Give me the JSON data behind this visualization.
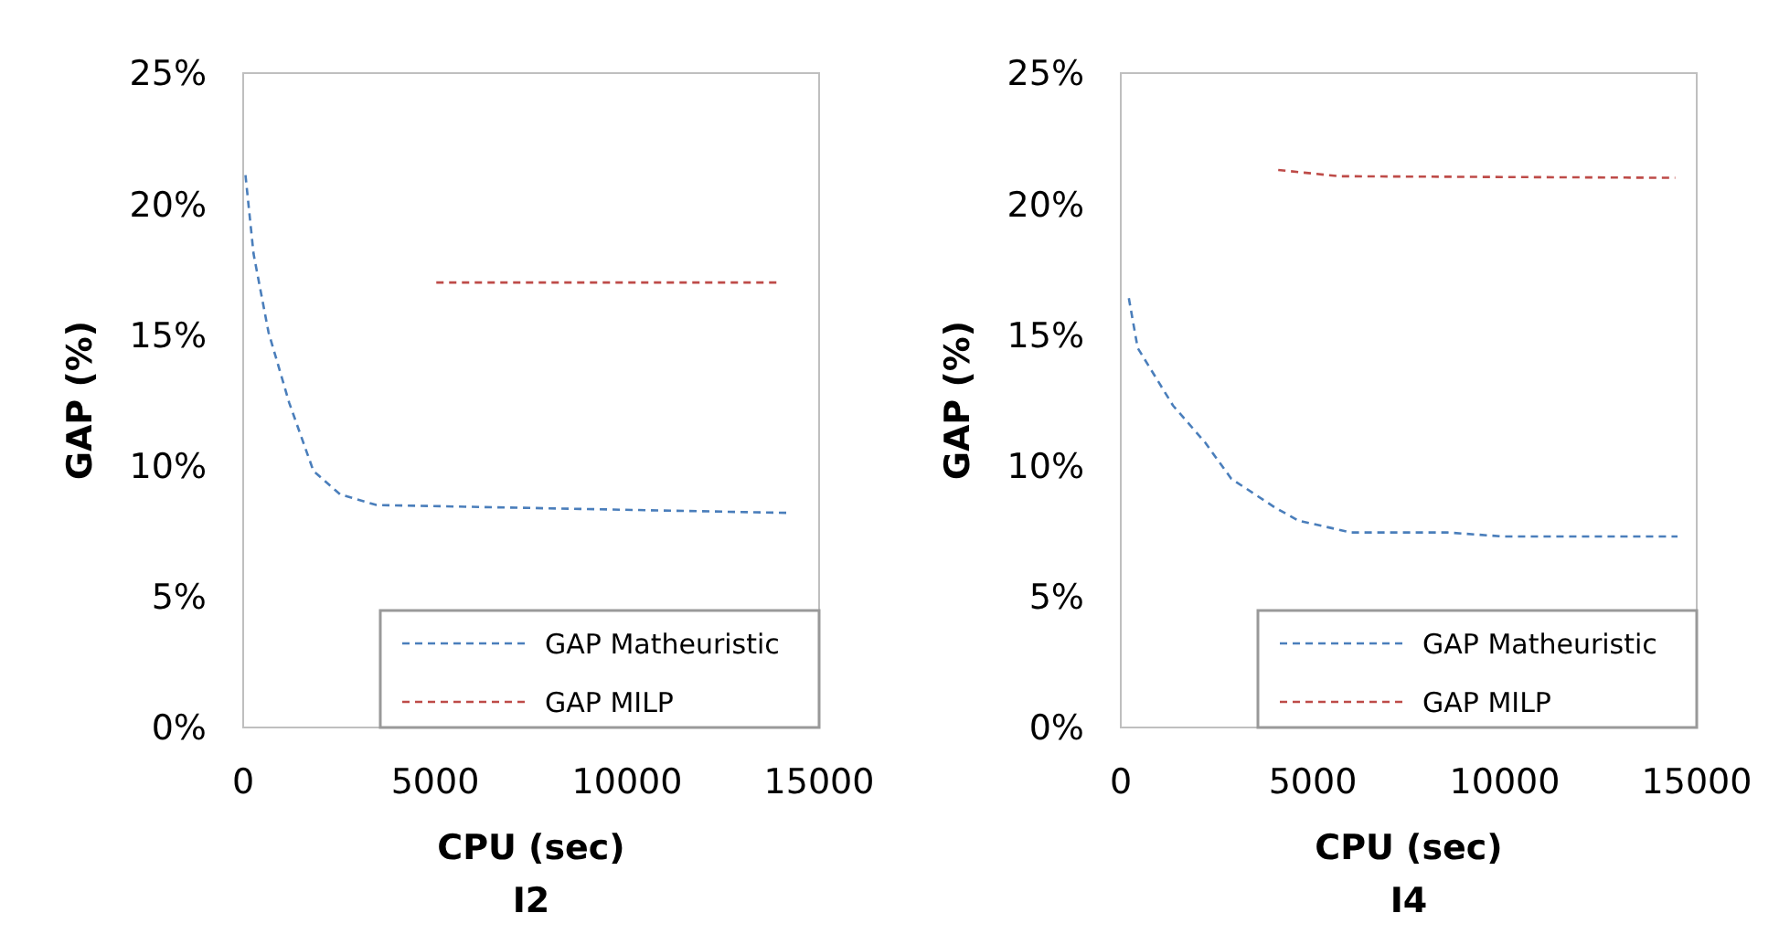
{
  "chart_data": [
    {
      "type": "line",
      "title": "I2",
      "xlabel": "CPU (sec)",
      "ylabel": "GAP (%)",
      "xlim": [
        0,
        15000
      ],
      "xticks": [
        0,
        5000,
        10000,
        15000
      ],
      "ylim": [
        0,
        25
      ],
      "yticks": [
        {
          "value": 0,
          "label": "0%"
        },
        {
          "value": 5,
          "label": "5%"
        },
        {
          "value": 10,
          "label": "10%"
        },
        {
          "value": 15,
          "label": "15%"
        },
        {
          "value": 20,
          "label": "20%"
        },
        {
          "value": 25,
          "label": "25%"
        }
      ],
      "grid": false,
      "legend": "bottom right",
      "line_style": "dashed",
      "marker": "none",
      "series": [
        {
          "name": "GAP Matheuristic",
          "color": "#4a7ebb",
          "x": [
            60,
            270,
            660,
            1200,
            1830,
            2530,
            3470,
            8770,
            14150
          ],
          "values": [
            21.1,
            18.1,
            15.1,
            12.4,
            9.8,
            8.9,
            8.5,
            8.35,
            8.2
          ]
        },
        {
          "name": "GAP MILP",
          "color": "#be4b48",
          "x": [
            5030,
            14000
          ],
          "values": [
            17.0,
            17.0
          ]
        }
      ]
    },
    {
      "type": "line",
      "title": "I4",
      "xlabel": "CPU (sec)",
      "ylabel": "GAP (%)",
      "xlim": [
        0,
        15000
      ],
      "xticks": [
        0,
        5000,
        10000,
        15000
      ],
      "ylim": [
        0,
        25
      ],
      "yticks": [
        {
          "value": 0,
          "label": "0%"
        },
        {
          "value": 5,
          "label": "5%"
        },
        {
          "value": 10,
          "label": "10%"
        },
        {
          "value": 15,
          "label": "15%"
        },
        {
          "value": 20,
          "label": "20%"
        },
        {
          "value": 25,
          "label": "25%"
        }
      ],
      "grid": false,
      "legend": "bottom right",
      "line_style": "dashed",
      "marker": "none",
      "series": [
        {
          "name": "GAP Matheuristic",
          "color": "#4a7ebb",
          "x": [
            210,
            440,
            1360,
            2190,
            2880,
            4020,
            4630,
            6000,
            8510,
            9950,
            14500
          ],
          "values": [
            16.4,
            14.5,
            12.3,
            10.9,
            9.5,
            8.4,
            7.9,
            7.45,
            7.45,
            7.3,
            7.3
          ]
        },
        {
          "name": "GAP MILP",
          "color": "#be4b48",
          "x": [
            4100,
            5690,
            14440
          ],
          "values": [
            21.3,
            21.06,
            21.0
          ]
        }
      ]
    }
  ]
}
